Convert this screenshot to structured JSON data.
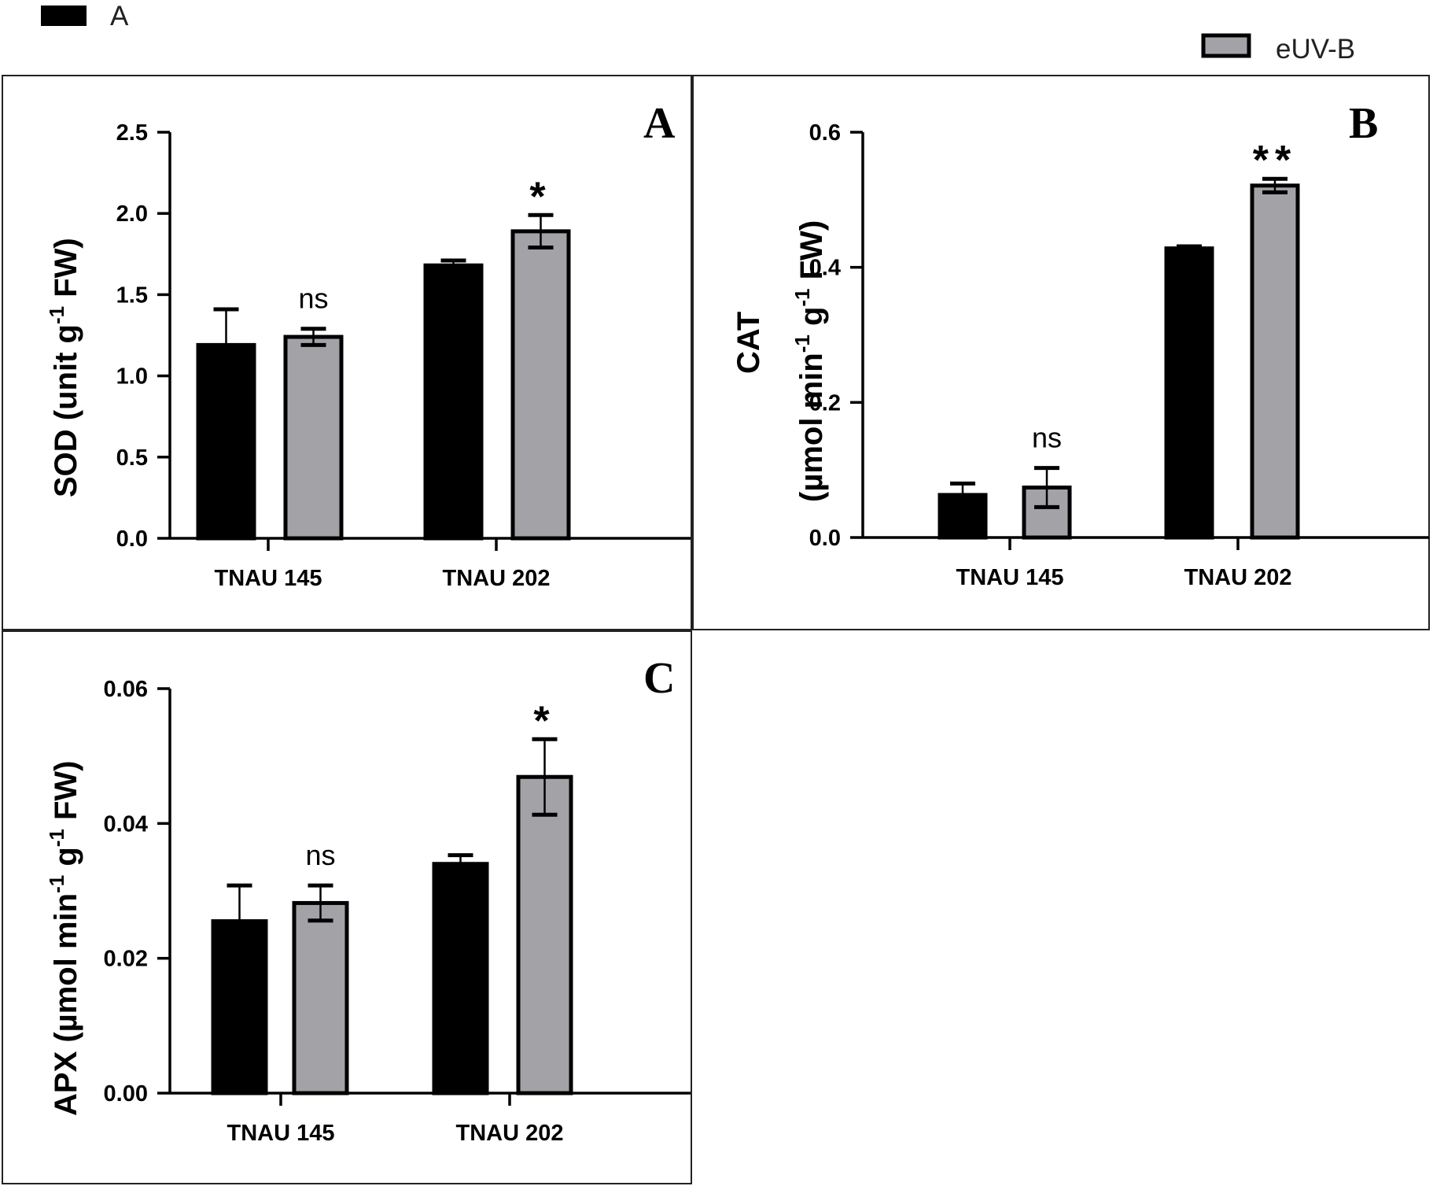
{
  "legend": [
    {
      "label": "A",
      "color": "#000000"
    },
    {
      "label": "eUV-B",
      "color": "#a3a3a7"
    }
  ],
  "chart_data": [
    {
      "type": "bar",
      "panel": "A",
      "categories": [
        "TNAU 145",
        "TNAU 202"
      ],
      "ylabel_main": "SOD (unit g",
      "ylabel_sup": "-1",
      "ylabel_tail": " FW)",
      "ylim": [
        0,
        2.5
      ],
      "yticks": [
        "0.0",
        "0.5",
        "1.0",
        "1.5",
        "2.0",
        "2.5"
      ],
      "ytick_values": [
        0,
        0.5,
        1.0,
        1.5,
        2.0,
        2.5
      ],
      "series": [
        {
          "name": "A",
          "values": [
            1.19,
            1.68
          ],
          "errors": [
            0.22,
            0.03
          ]
        },
        {
          "name": "eUV-B",
          "values": [
            1.24,
            1.89
          ],
          "errors": [
            0.05,
            0.1
          ]
        }
      ],
      "significance": [
        "ns",
        "*"
      ]
    },
    {
      "type": "bar",
      "panel": "B",
      "categories": [
        "TNAU 145",
        "TNAU 202"
      ],
      "ylabel_line1": "CAT",
      "ylabel_main": "(µmol min",
      "ylabel_sup": "-1",
      "ylabel_mid": " g",
      "ylabel_sup2": "-1",
      "ylabel_tail": " FW)",
      "ylim": [
        0,
        0.6
      ],
      "yticks": [
        "0.0",
        "0.2",
        "0.4",
        "0.6"
      ],
      "ytick_values": [
        0,
        0.2,
        0.4,
        0.6
      ],
      "series": [
        {
          "name": "A",
          "values": [
            0.063,
            0.428
          ],
          "errors": [
            0.017,
            0.003
          ]
        },
        {
          "name": "eUV-B",
          "values": [
            0.074,
            0.521
          ],
          "errors": [
            0.029,
            0.01
          ]
        }
      ],
      "significance": [
        "ns",
        "**"
      ]
    },
    {
      "type": "bar",
      "panel": "C",
      "categories": [
        "TNAU 145",
        "TNAU 202"
      ],
      "ylabel_main": "APX  (µmol min",
      "ylabel_sup": "-1",
      "ylabel_mid": " g",
      "ylabel_sup2": "-1",
      "ylabel_tail": " FW)",
      "ylim": [
        0,
        0.06
      ],
      "yticks": [
        "0.00",
        "0.02",
        "0.04",
        "0.06"
      ],
      "ytick_values": [
        0,
        0.02,
        0.04,
        0.06
      ],
      "series": [
        {
          "name": "A",
          "values": [
            0.0255,
            0.034
          ],
          "errors": [
            0.0053,
            0.0013
          ]
        },
        {
          "name": "eUV-B",
          "values": [
            0.0282,
            0.0469
          ],
          "errors": [
            0.0026,
            0.0056
          ]
        }
      ],
      "significance": [
        "ns",
        "*"
      ]
    }
  ]
}
